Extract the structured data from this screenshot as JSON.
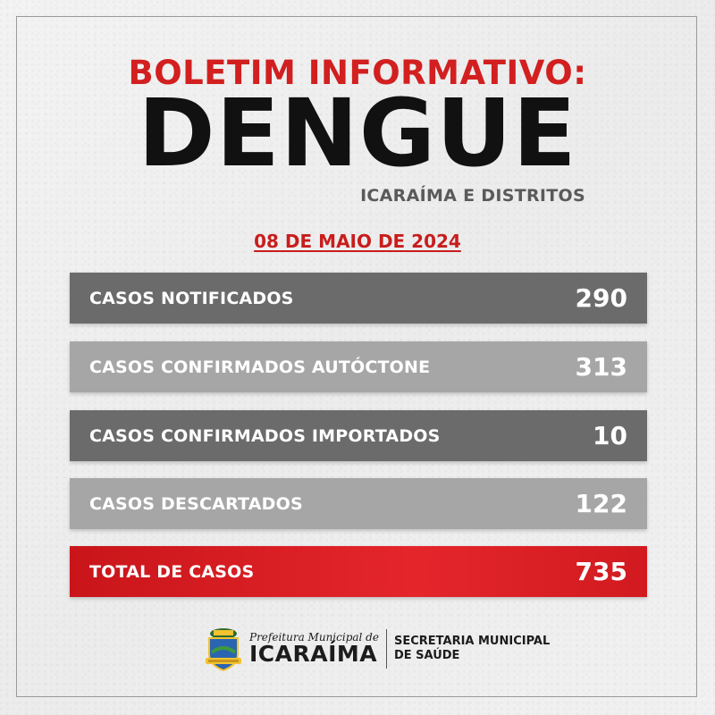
{
  "header": {
    "heading": "BOLETIM INFORMATIVO:",
    "title": "DENGUE",
    "subtitle": "ICARAÍMA E DISTRITOS",
    "date": "08 DE MAIO DE 2024"
  },
  "rows": [
    {
      "label": "CASOS NOTIFICADOS",
      "value": "290"
    },
    {
      "label": "CASOS CONFIRMADOS AUTÓCTONE",
      "value": "313"
    },
    {
      "label": "CASOS CONFIRMADOS IMPORTADOS",
      "value": "10"
    },
    {
      "label": "CASOS DESCARTADOS",
      "value": "122"
    },
    {
      "label": "TOTAL DE CASOS",
      "value": "735"
    }
  ],
  "footer": {
    "prefeitura_line1": "Prefeitura Municipal de",
    "prefeitura_line2": "ICARAÍMA",
    "secretaria_line1": "SECRETARIA MUNICIPAL",
    "secretaria_line2": "DE SAÚDE",
    "logo_icon": "municipal-crest-icon"
  },
  "colors": {
    "accent_red": "#d21f1f",
    "row_dark": "#6b6b6b",
    "row_light": "#a6a6a6",
    "row_total": "#e4262b"
  }
}
